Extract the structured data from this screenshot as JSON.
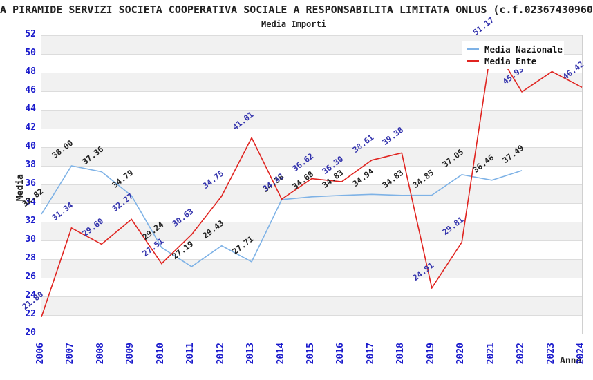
{
  "title": "A PIRAMIDE SERVIZI SOCIETA COOPERATIVA SOCIALE A RESPONSABILITA LIMITATA ONLUS (c.f.02367430960",
  "subtitle": "Media Importi",
  "axes": {
    "y_title": "Media",
    "x_title": "Anno",
    "ylim": [
      20,
      52
    ],
    "y_ticks": [
      52,
      50,
      48,
      46,
      44,
      42,
      40,
      38,
      36,
      34,
      32,
      30,
      28,
      26,
      24,
      22,
      20
    ],
    "x_ticks": [
      "2006",
      "2007",
      "2008",
      "2009",
      "2010",
      "2011",
      "2012",
      "2013",
      "2014",
      "2015",
      "2016",
      "2017",
      "2018",
      "2019",
      "2020",
      "2021",
      "2022",
      "2023",
      "2024"
    ],
    "tick_color": "#1a1acc",
    "grid": "horizontal-bands"
  },
  "legend": [
    {
      "label": "Media Nazionale",
      "color": "#7eb2e6"
    },
    {
      "label": "Media Ente",
      "color": "#e02420"
    }
  ],
  "chart_data": {
    "type": "line",
    "title": "Media Importi",
    "xlabel": "Anno",
    "ylabel": "Media",
    "ylim": [
      20,
      52
    ],
    "legend_position": "top-right",
    "x": [
      2006,
      2007,
      2008,
      2009,
      2010,
      2011,
      2012,
      2013,
      2014,
      2015,
      2016,
      2017,
      2018,
      2019,
      2020,
      2021,
      2022,
      2023,
      2024
    ],
    "series": [
      {
        "name": "Media Nazionale",
        "color": "#7eb2e6",
        "label_color": "#222222",
        "values": [
          32.82,
          38.0,
          37.36,
          34.79,
          29.24,
          27.19,
          29.43,
          27.71,
          34.38,
          34.68,
          34.83,
          34.94,
          34.83,
          34.85,
          37.05,
          36.46,
          37.49,
          null,
          null
        ],
        "labels": [
          "32.82",
          "38.00",
          "37.36",
          "34.79",
          "29.24",
          "27.19",
          "29.43",
          "27.71",
          "34.38",
          "34.68",
          "34.83",
          "34.94",
          "34.83",
          "34.85",
          "37.05",
          "36.46",
          "37.49",
          null,
          null
        ]
      },
      {
        "name": "Media Ente",
        "color": "#e02420",
        "label_color": "#3434ad",
        "values": [
          21.8,
          31.34,
          29.6,
          32.27,
          27.51,
          30.63,
          34.75,
          41.01,
          34.42,
          36.62,
          36.3,
          38.61,
          39.38,
          24.91,
          29.81,
          51.17,
          45.93,
          48.1,
          46.42
        ],
        "labels": [
          "21.80",
          "31.34",
          "29.60",
          "32.27",
          "27.51",
          "30.63",
          "34.75",
          "41.01",
          "34.42",
          "36.62",
          "36.30",
          "38.61",
          "39.38",
          "24.91",
          "29.81",
          "51.17",
          "45.93",
          null,
          "46.42"
        ]
      }
    ]
  }
}
